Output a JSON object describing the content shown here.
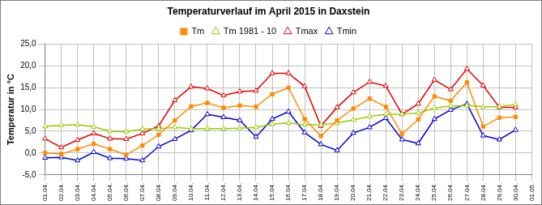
{
  "chart_data": {
    "type": "line",
    "title": "Temperaturverlauf im April 2015 in Daxstein",
    "y_label": "Temperatur in °C",
    "categories": [
      "01.04.",
      "02.04.",
      "03.04.",
      "04.04.",
      "05.04.",
      "06.04.",
      "07.04.",
      "08.04.",
      "09.04.",
      "10.04.",
      "11.04.",
      "12.04.",
      "13.04.",
      "14.04.",
      "15.04.",
      "16.04.",
      "17.04.",
      "18.04.",
      "19.04.",
      "20.04.",
      "21.04.",
      "22.04.",
      "23.04.",
      "24.04.",
      "25.04.",
      "26.04.",
      "27.04.",
      "28.04.",
      "29.04.",
      "30.04.",
      "01.05."
    ],
    "series": [
      {
        "name": "Tm",
        "color": "#ff8c00",
        "marker": "square",
        "values": [
          0.0,
          -0.2,
          0.9,
          2.1,
          0.9,
          -0.4,
          1.7,
          4.2,
          7.5,
          10.7,
          11.5,
          10.4,
          10.9,
          10.6,
          13.5,
          15.0,
          7.8,
          3.9,
          7.5,
          10.2,
          12.5,
          10.6,
          4.4,
          7.7,
          13.0,
          12.0,
          16.2,
          6.1,
          8.1,
          8.3,
          null
        ]
      },
      {
        "name": "Tm 1981 - 10",
        "color": "#99cc00",
        "marker": "triangle",
        "values": [
          6.1,
          6.4,
          6.5,
          6.0,
          5.0,
          4.9,
          5.5,
          5.6,
          5.9,
          5.6,
          5.6,
          5.6,
          5.7,
          5.9,
          6.6,
          6.9,
          6.5,
          6.5,
          6.9,
          7.6,
          8.4,
          8.9,
          8.9,
          9.2,
          10.3,
          10.8,
          10.9,
          10.6,
          10.6,
          11.2,
          null
        ]
      },
      {
        "name": "Tmax",
        "color": "#e00000",
        "marker": "triangle",
        "values": [
          3.3,
          1.3,
          3.0,
          4.5,
          3.3,
          3.2,
          4.5,
          6.2,
          12.1,
          15.2,
          14.8,
          13.2,
          14.1,
          14.3,
          18.3,
          18.3,
          15.3,
          6.2,
          10.5,
          13.9,
          16.3,
          15.4,
          8.9,
          11.3,
          16.8,
          14.6,
          19.3,
          15.5,
          10.5,
          10.5,
          null
        ]
      },
      {
        "name": "Tmin",
        "color": "#0000cc",
        "marker": "triangle",
        "values": [
          -1.1,
          -1.0,
          -1.7,
          0.2,
          -1.2,
          -1.3,
          -1.7,
          1.5,
          3.2,
          5.2,
          8.9,
          8.2,
          7.5,
          3.7,
          7.8,
          9.5,
          4.7,
          2.0,
          0.6,
          4.6,
          5.9,
          8.0,
          3.1,
          2.2,
          7.8,
          9.9,
          11.3,
          4.0,
          3.1,
          5.3,
          null
        ]
      }
    ],
    "ylim": [
      -5,
      25
    ],
    "yticks": [
      {
        "value": -5,
        "label": "-5,0"
      },
      {
        "value": 0,
        "label": "0,0"
      },
      {
        "value": 5,
        "label": "5,0"
      },
      {
        "value": 10,
        "label": "10,0"
      },
      {
        "value": 15,
        "label": "15,0"
      },
      {
        "value": 20,
        "label": "20,0"
      },
      {
        "value": 25,
        "label": "25,0"
      }
    ],
    "grid": true,
    "legend": "top"
  }
}
